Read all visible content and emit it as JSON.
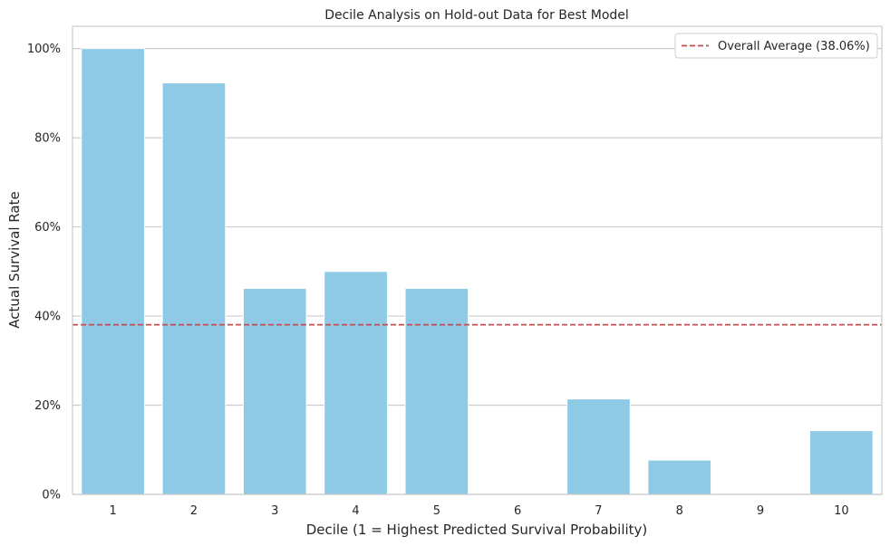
{
  "chart_data": {
    "type": "bar",
    "title": "Decile Analysis on Hold-out Data for Best Model",
    "xlabel": "Decile (1 = Highest Predicted Survival Probability)",
    "ylabel": "Actual Survival Rate",
    "categories": [
      "1",
      "2",
      "3",
      "4",
      "5",
      "6",
      "7",
      "8",
      "9",
      "10"
    ],
    "values": [
      1.0,
      0.923,
      0.462,
      0.5,
      0.462,
      0.0,
      0.214,
      0.077,
      0.0,
      0.143
    ],
    "ylim": [
      0,
      1.05
    ],
    "yticks": [
      0,
      0.2,
      0.4,
      0.6,
      0.8,
      1.0
    ],
    "ytick_labels": [
      "0%",
      "20%",
      "40%",
      "60%",
      "80%",
      "100%"
    ],
    "grid": "horizontal",
    "bar_color": "#8ecae6",
    "reference_line": {
      "label": "Overall Average (38.06%)",
      "value": 0.3806,
      "color": "#c44e52",
      "style": "dashed"
    },
    "legend_position": "top-right"
  }
}
